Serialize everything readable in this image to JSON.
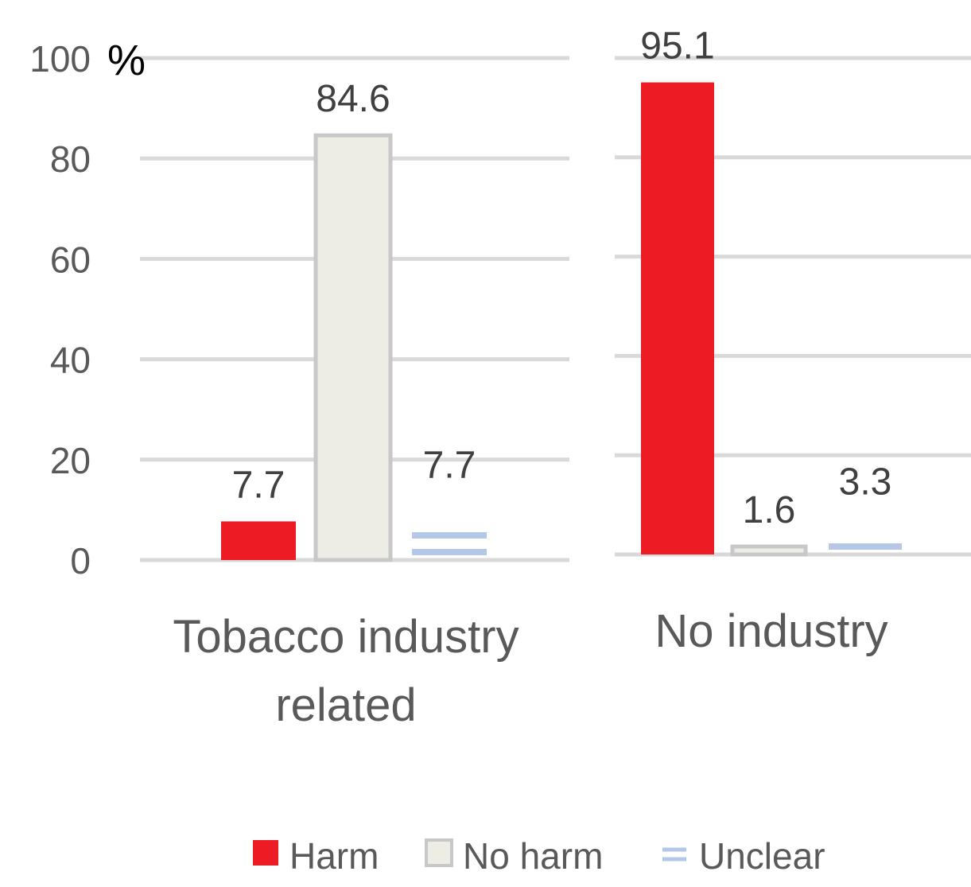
{
  "chart_data": {
    "type": "bar",
    "ylabel": "%",
    "ylim": [
      0,
      100
    ],
    "yticks": [
      0,
      20,
      40,
      60,
      80,
      100
    ],
    "grid": true,
    "legend_position": "bottom",
    "categories": [
      {
        "label_lines": [
          "Tobacco industry",
          "related"
        ]
      },
      {
        "label_lines": [
          "No industry"
        ]
      }
    ],
    "series": [
      {
        "name": "Harm",
        "color": "#ed1c24",
        "values": [
          7.7,
          95.1
        ],
        "labels": [
          "7.7",
          "95.1"
        ]
      },
      {
        "name": "No harm",
        "color": "#ededE5",
        "border": "#c8c8c8",
        "values": [
          84.6,
          1.6
        ],
        "labels": [
          "84.6",
          "1.6"
        ]
      },
      {
        "name": "Unclear",
        "color": "#b4c7e7",
        "values": [
          7.7,
          3.3
        ],
        "labels": [
          "7.7",
          "3.3"
        ]
      }
    ]
  }
}
